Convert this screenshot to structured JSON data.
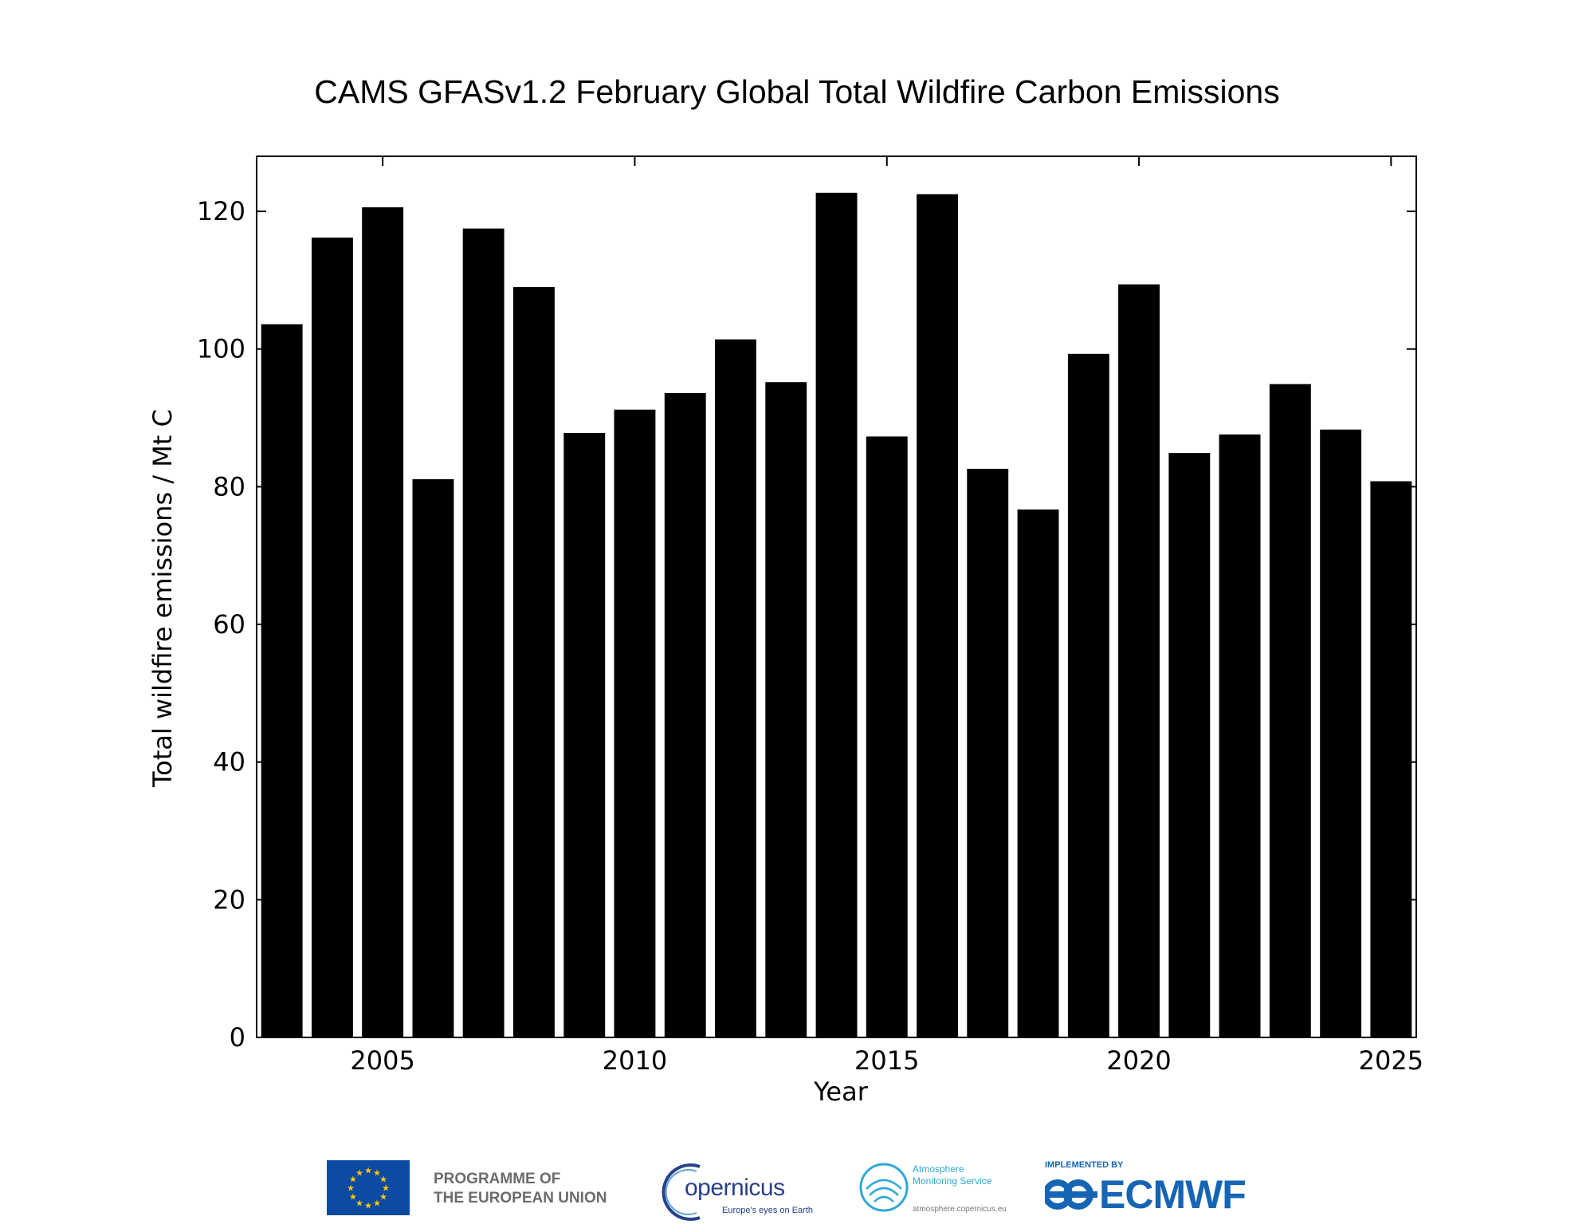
{
  "chart_data": {
    "type": "bar",
    "title": "CAMS GFASv1.2 February Global Total Wildfire Carbon Emissions",
    "xlabel": "Year",
    "ylabel": "Total wildfire emissions / Mt C",
    "x": [
      2003,
      2004,
      2005,
      2006,
      2007,
      2008,
      2009,
      2010,
      2011,
      2012,
      2013,
      2014,
      2015,
      2016,
      2017,
      2018,
      2019,
      2020,
      2021,
      2022,
      2023,
      2024,
      2025
    ],
    "values": [
      103.6,
      116.2,
      120.6,
      81.1,
      117.5,
      109.0,
      87.8,
      91.2,
      93.6,
      101.4,
      95.2,
      122.7,
      87.3,
      122.5,
      82.6,
      76.7,
      99.3,
      109.4,
      84.9,
      87.6,
      94.9,
      88.3,
      80.8
    ],
    "xlim": [
      2002.5,
      2025.5
    ],
    "ylim": [
      0,
      128
    ],
    "xticks": [
      2005,
      2010,
      2015,
      2020,
      2025
    ],
    "xtick_labels": [
      "2005",
      "2010",
      "2015",
      "2020",
      "2025"
    ],
    "yticks": [
      0,
      20,
      40,
      60,
      80,
      100,
      120
    ],
    "ytick_labels": [
      "0",
      "20",
      "40",
      "60",
      "80",
      "100",
      "120"
    ],
    "grid": false,
    "bar_color": "#000000"
  },
  "footer": {
    "eu_line1": "PROGRAMME OF",
    "eu_line2": "THE EUROPEAN UNION",
    "copernicus_name": "opernicus",
    "copernicus_tagline": "Europe's eyes on Earth",
    "cams_line1": "Atmosphere",
    "cams_line2": "Monitoring Service",
    "cams_url": "atmosphere.copernicus.eu",
    "ecmwf_implemented": "IMPLEMENTED BY",
    "ecmwf_name": "ECMWF",
    "eu_blue": "#0d4aa4",
    "eu_star": "#ffcc00",
    "copernicus_blue": "#27408b",
    "cams_blue": "#2fa9d6",
    "ecmwf_blue": "#1565b4"
  }
}
